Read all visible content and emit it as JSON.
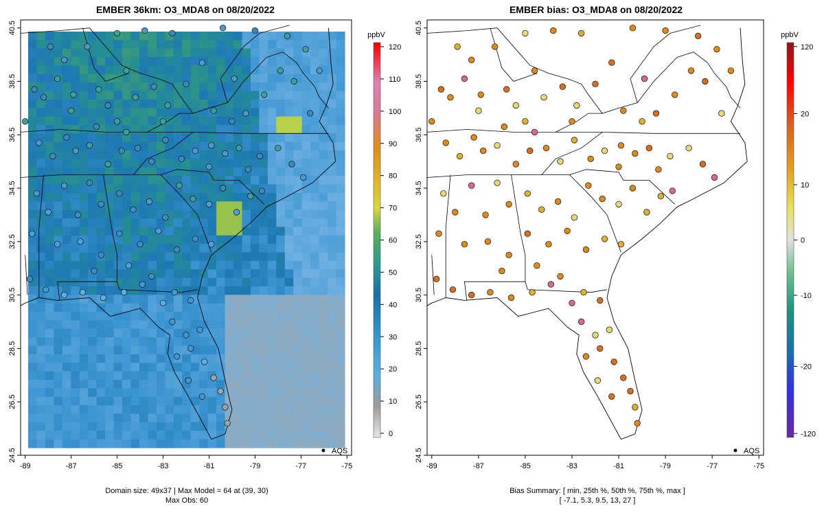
{
  "left_panel": {
    "title": "EMBER 36km: O3_MDA8 on 08/20/2022",
    "colorbar_unit": "ppbV",
    "colorbar_ticks": [
      0,
      10,
      20,
      30,
      40,
      50,
      60,
      70,
      80,
      90,
      100,
      110,
      120
    ],
    "footer_line1": "Domain size: 49x37 | Max Model = 64 at (39, 30)",
    "footer_line2": "Max Obs: 60",
    "legend_label": "AQS"
  },
  "right_panel": {
    "title": "EMBER bias: O3_MDA8 on 08/20/2022",
    "colorbar_unit": "ppbV",
    "colorbar_ticks": [
      120,
      20,
      10,
      0,
      -10,
      -20,
      -120
    ],
    "footer_line1": "Bias Summary: [ min, 25th %, 50th %, 75th %, max ]",
    "footer_line2": "[ -7.1,   5.3,   9.5,   13,   27 ]",
    "legend_label": "AQS"
  },
  "axes": {
    "lon_ticks": [
      "-89",
      "-87",
      "-85",
      "-83",
      "-81",
      "-79",
      "-77",
      "-75"
    ],
    "lat_ticks": [
      "24.5",
      "26.5",
      "28.5",
      "30.5",
      "32.5",
      "34.5",
      "36.5",
      "38.5",
      "40.5"
    ]
  },
  "chart_data": {
    "type": "heatmap",
    "lon_range": [
      -89.2,
      -74.8
    ],
    "lat_range": [
      24.5,
      40.8
    ],
    "colors": {
      "land_band": "#2e8fb8",
      "coast_band": "#5ab0e0",
      "ocean_far": "#9aa8b0",
      "high_ozone": "#c8d84a"
    }
  }
}
